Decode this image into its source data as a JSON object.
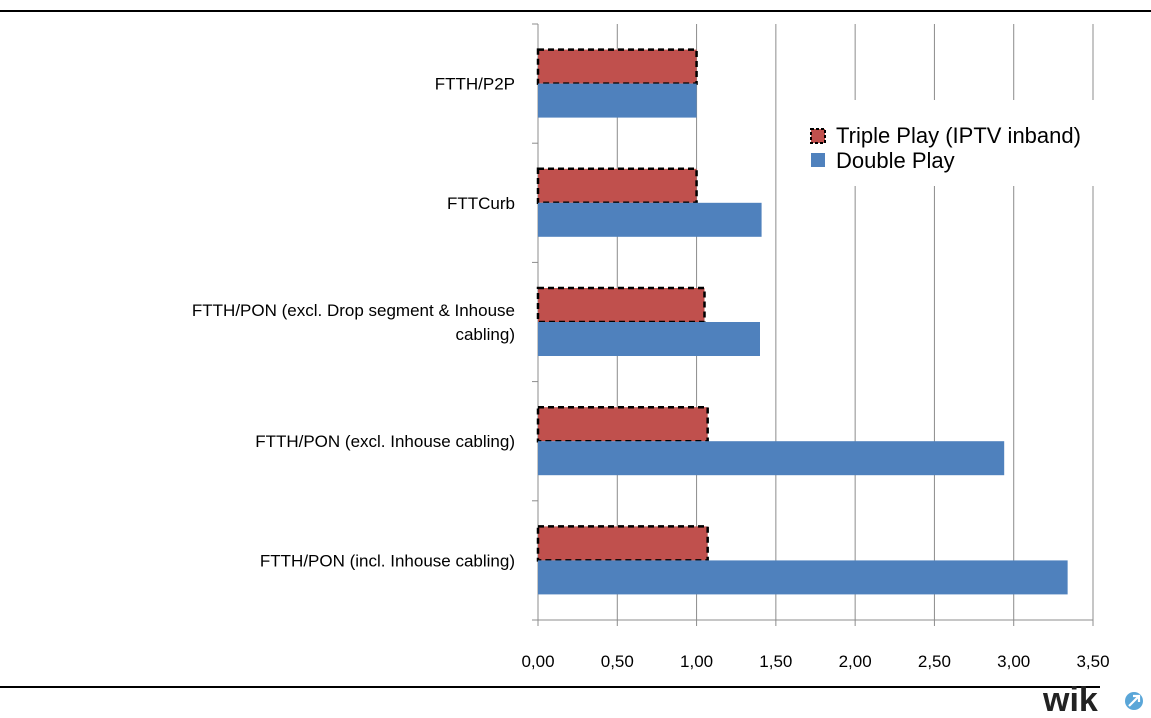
{
  "chart_data": {
    "type": "bar",
    "orientation": "horizontal",
    "categories": [
      "FTTH/P2P",
      "FTTCurb",
      "FTTH/PON (excl. Drop segment & Inhouse cabling)",
      "FTTH/PON (excl. Inhouse cabling)",
      "FTTH/PON (incl. Inhouse cabling)"
    ],
    "category_label_lines": [
      [
        "FTTH/P2P"
      ],
      [
        "FTTCurb"
      ],
      [
        "FTTH/PON (excl. Drop segment & Inhouse",
        "cabling)"
      ],
      [
        "FTTH/PON (excl. Inhouse cabling)"
      ],
      [
        "FTTH/PON (incl. Inhouse cabling)"
      ]
    ],
    "series": [
      {
        "name": "Triple Play (IPTV inband)",
        "values": [
          1.0,
          1.0,
          1.05,
          1.07,
          1.07
        ],
        "color": "#c0504d",
        "border": "dashed-black"
      },
      {
        "name": "Double Play",
        "values": [
          1.0,
          1.41,
          1.4,
          2.94,
          3.34
        ],
        "color": "#4f81bd"
      }
    ],
    "xlim": [
      0,
      3.5
    ],
    "xticks": [
      "0,00",
      "0,50",
      "1,00",
      "1,50",
      "2,00",
      "2,50",
      "3,00",
      "3,50"
    ],
    "grid": "vertical",
    "legend": "top-right",
    "title": "",
    "xlabel": "",
    "ylabel": ""
  },
  "logo": {
    "text": "wik"
  }
}
